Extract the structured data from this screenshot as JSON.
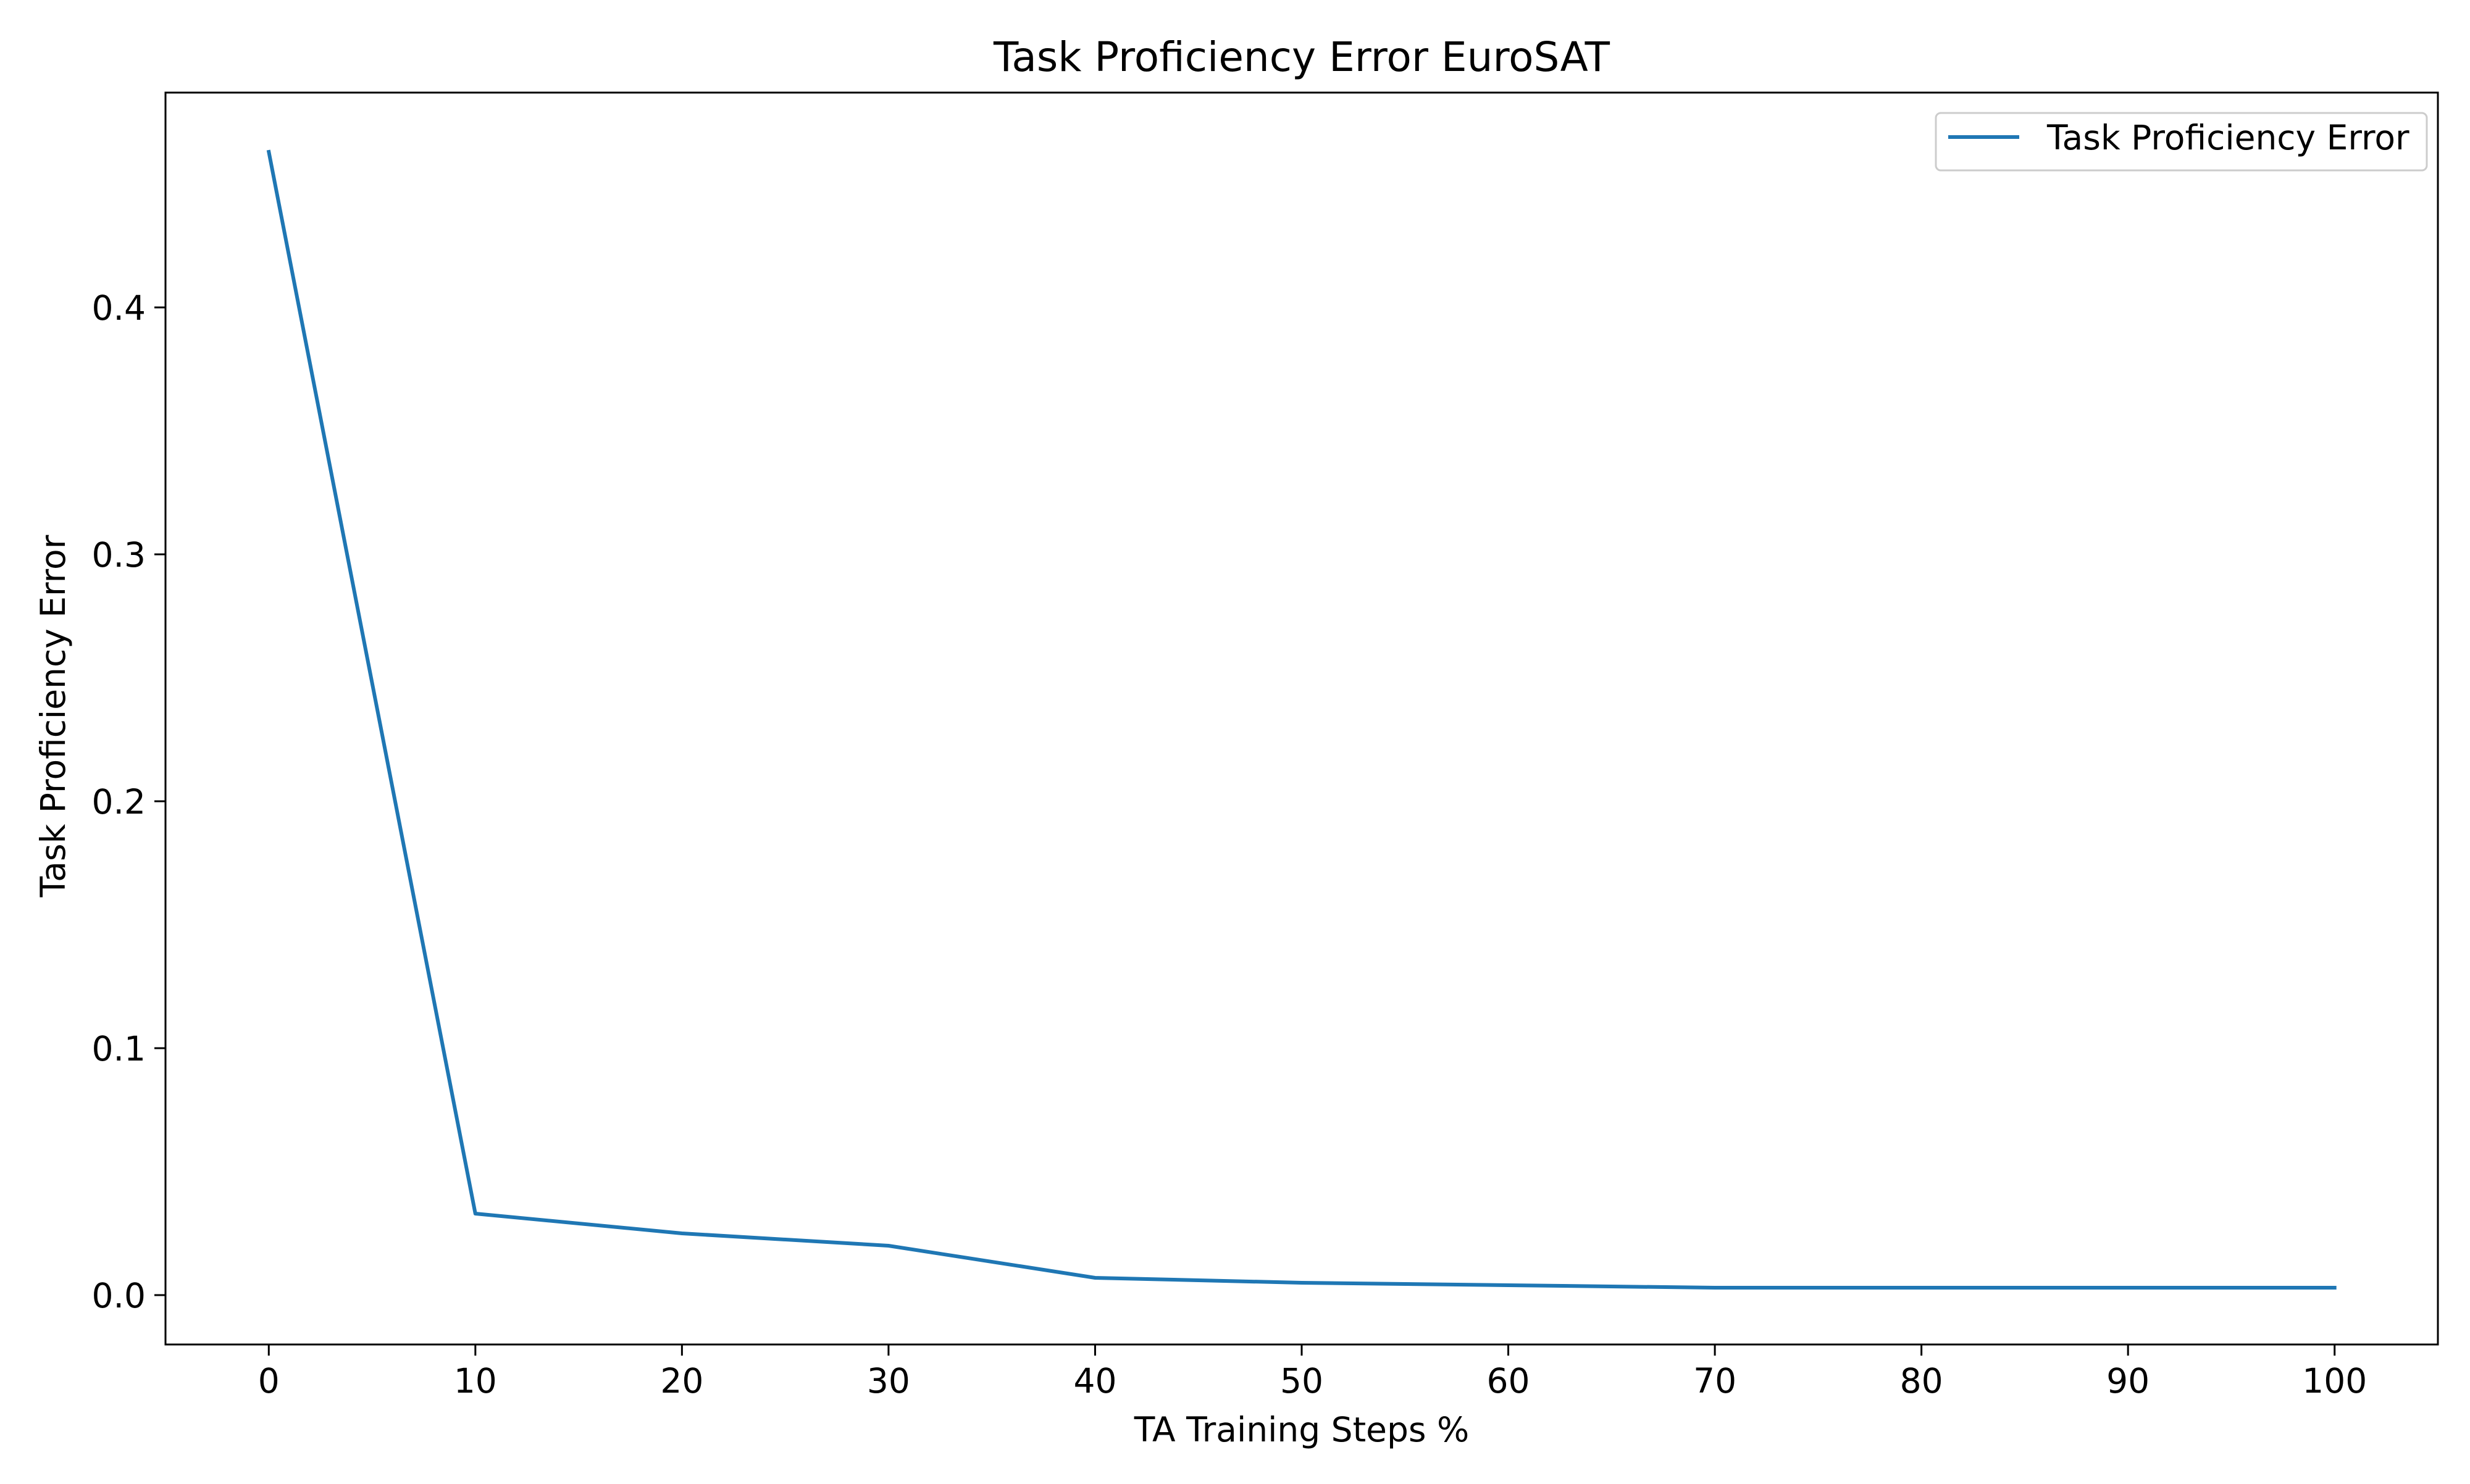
{
  "chart_data": {
    "type": "line",
    "title": "Task Proficiency Error EuroSAT",
    "xlabel": "TA Training Steps %",
    "ylabel": "Task Proficiency Error",
    "x": [
      0,
      10,
      20,
      30,
      40,
      50,
      60,
      70,
      80,
      90,
      100
    ],
    "series": [
      {
        "name": "Task Proficiency Error",
        "color": "#1f77b4",
        "values": [
          0.463,
          0.033,
          0.025,
          0.02,
          0.007,
          0.005,
          0.004,
          0.003,
          0.003,
          0.003,
          0.003
        ]
      }
    ],
    "xlim": [
      -5,
      105
    ],
    "ylim": [
      -0.02,
      0.487
    ],
    "xticks": [
      "0",
      "10",
      "20",
      "30",
      "40",
      "50",
      "60",
      "70",
      "80",
      "90",
      "100"
    ],
    "yticks": [
      "0.0",
      "0.1",
      "0.2",
      "0.3",
      "0.4"
    ],
    "grid": false,
    "legend": "upper right"
  }
}
